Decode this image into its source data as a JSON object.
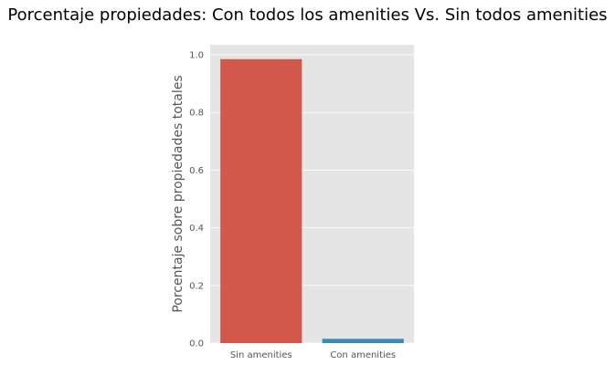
{
  "chart_data": {
    "type": "bar",
    "title": "Porcentaje propiedades: Con todos los amenities Vs. Sin todos amenities",
    "xlabel": "",
    "ylabel": "Porcentaje sobre propiedades totales",
    "categories": [
      "Sin amenities",
      "Con amenities"
    ],
    "values": [
      0.985,
      0.015
    ],
    "ylim": [
      0,
      1.035
    ],
    "yticks": [
      0.0,
      0.2,
      0.4,
      0.6,
      0.8,
      1.0
    ],
    "ytick_labels": [
      "0.0",
      "0.2",
      "0.4",
      "0.6",
      "0.8",
      "1.0"
    ],
    "colors": [
      "#d1584a",
      "#3d8ab8"
    ],
    "background": "#e5e5e5",
    "grid": true,
    "grid_color": "#ffffff"
  }
}
